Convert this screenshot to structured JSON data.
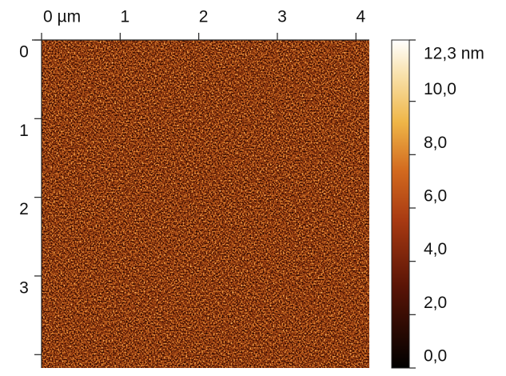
{
  "chart_data": {
    "type": "heatmap",
    "xlim": [
      0,
      4.17
    ],
    "xticks": [
      {
        "value": 0,
        "label": "0 µm"
      },
      1,
      2,
      3,
      4
    ],
    "ylim": [
      0,
      4.17
    ],
    "yticks": [
      0,
      1,
      2,
      3,
      {
        "value": 4,
        "label": null
      }
    ],
    "zlim": [
      0,
      12.3
    ],
    "zticks": [
      {
        "value": 12.3,
        "label": "12,3 nm"
      },
      {
        "value": 10,
        "label": "10,0"
      },
      {
        "value": 8,
        "label": "8,0"
      },
      {
        "value": 6,
        "label": "6,0"
      },
      {
        "value": 4,
        "label": "4,0"
      },
      {
        "value": 2,
        "label": "2,0"
      },
      {
        "value": 0,
        "label": "0,0"
      }
    ]
  }
}
